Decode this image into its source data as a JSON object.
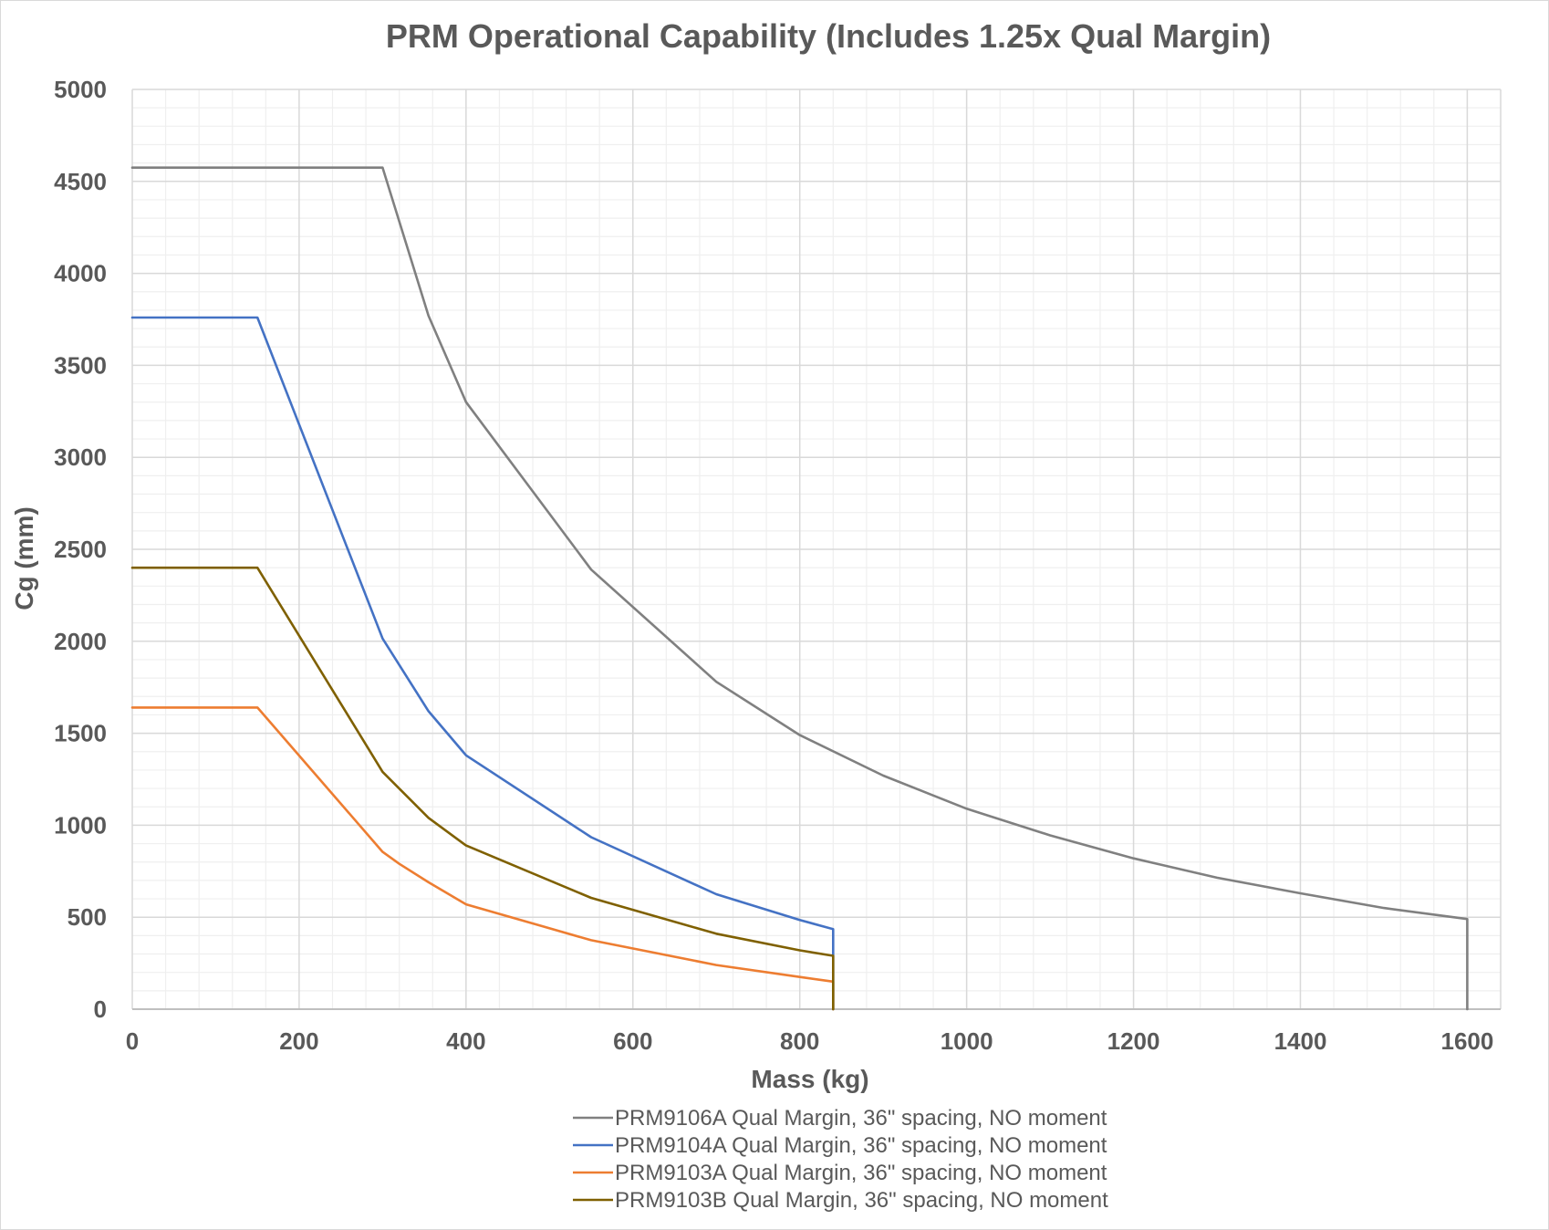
{
  "chart_data": {
    "type": "line",
    "title": "PRM Operational Capability (Includes 1.25x Qual Margin)",
    "xlabel": "Mass (kg)",
    "ylabel": "Cg (mm)",
    "xlim": [
      0,
      1640
    ],
    "ylim": [
      0,
      5000
    ],
    "x_ticks": [
      0,
      200,
      400,
      600,
      800,
      1000,
      1200,
      1400,
      1600
    ],
    "y_ticks": [
      0,
      500,
      1000,
      1500,
      2000,
      2500,
      3000,
      3500,
      4000,
      4500,
      5000
    ],
    "x_ticks_text": [
      "0",
      "200",
      "400",
      "600",
      "800",
      "1000",
      "1200",
      "1400",
      "1600"
    ],
    "y_ticks_text": [
      "0",
      "500",
      "1000",
      "1500",
      "2000",
      "2500",
      "3000",
      "3500",
      "4000",
      "4500",
      "5000"
    ],
    "grid": true,
    "minor_grid": true,
    "legend_position": "bottom",
    "series": [
      {
        "name": "PRM9106A Qual Margin, 36\" spacing, NO moment",
        "color": "#808080",
        "x": [
          0,
          300,
          355,
          400,
          550,
          700,
          800,
          900,
          1000,
          1100,
          1200,
          1300,
          1400,
          1500,
          1600,
          1600
        ],
        "y": [
          4575,
          4575,
          3770,
          3300,
          2390,
          1780,
          1490,
          1270,
          1090,
          945,
          820,
          715,
          630,
          550,
          490,
          0
        ]
      },
      {
        "name": "PRM9104A Qual Margin, 36\" spacing, NO moment",
        "color": "#4472c4",
        "x": [
          0,
          150,
          300,
          355,
          400,
          550,
          700,
          800,
          840,
          840
        ],
        "y": [
          3760,
          3760,
          2015,
          1620,
          1380,
          935,
          625,
          485,
          435,
          0
        ]
      },
      {
        "name": "PRM9103A Qual Margin, 36\" spacing, NO moment",
        "color": "#ed7d31",
        "x": [
          0,
          150,
          300,
          320,
          355,
          400,
          550,
          700,
          800,
          840,
          840
        ],
        "y": [
          1640,
          1640,
          855,
          790,
          690,
          570,
          375,
          240,
          175,
          150,
          0
        ]
      },
      {
        "name": "PRM9103B Qual Margin, 36\" spacing, NO moment",
        "color": "#7f6000",
        "x": [
          0,
          150,
          300,
          355,
          400,
          550,
          700,
          800,
          840,
          840
        ],
        "y": [
          2400,
          2400,
          1290,
          1040,
          890,
          605,
          410,
          320,
          290,
          0
        ]
      }
    ]
  }
}
